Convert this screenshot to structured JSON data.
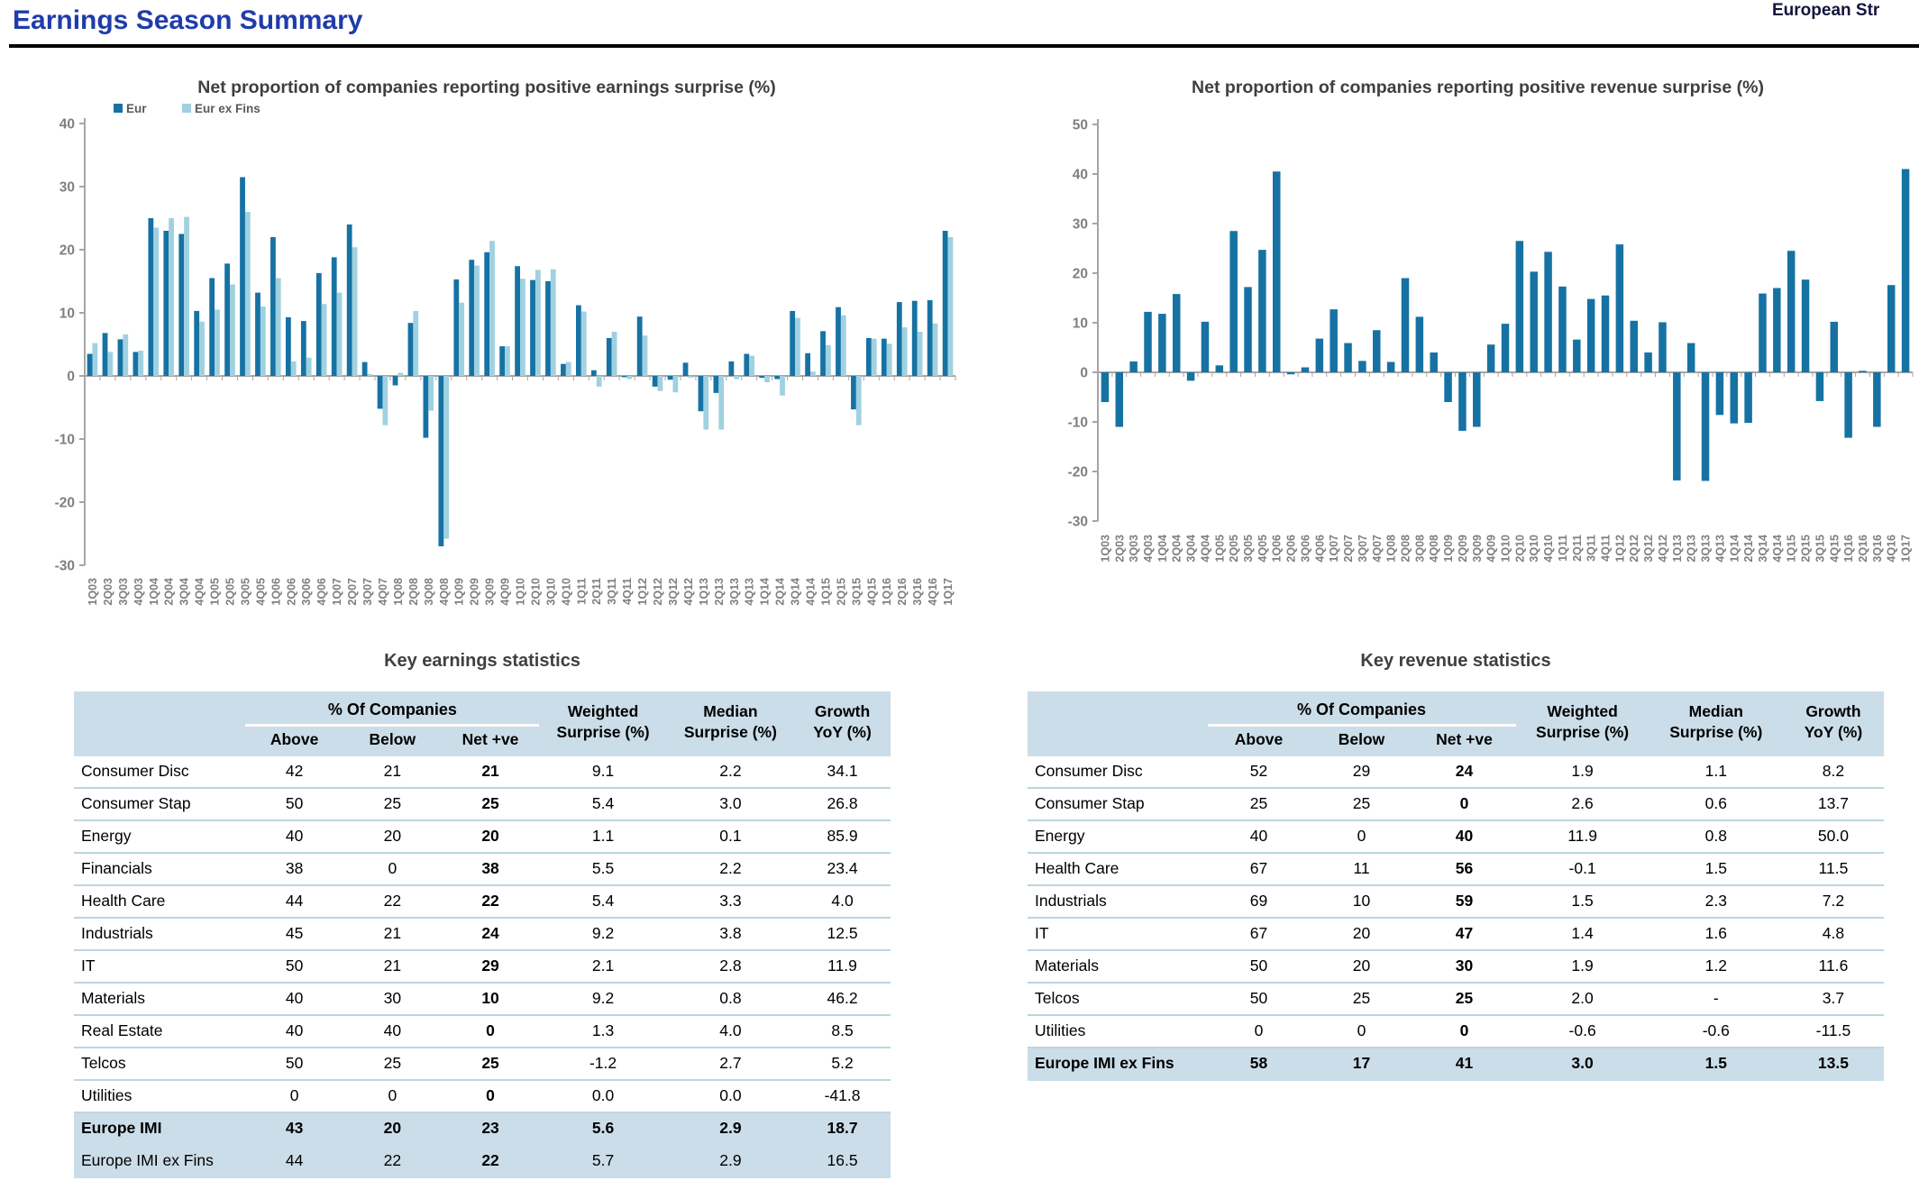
{
  "page": {
    "title": "Earnings Season Summary",
    "watermark_label": "European Str"
  },
  "colors": {
    "title_blue": "#1f3cab",
    "bar_dark": "#1672a3",
    "bar_light": "#a0d1e0",
    "axis_gray": "#a6a6a6",
    "tick_label_gray": "#7f7f7f",
    "chart_title_gray": "#3f3f3f",
    "table_header_bg": "#cbdde8",
    "row_divider": "#bed5e0"
  },
  "chart_data": [
    {
      "type": "bar",
      "title": "Net proportion of companies reporting positive earnings surprise (%)",
      "xlabel": "",
      "ylabel": "",
      "ylim": [
        -30,
        40
      ],
      "y_ticks": [
        40,
        30,
        20,
        10,
        0,
        -10,
        -20,
        -30
      ],
      "grid": false,
      "legend_position": "top-left",
      "categories": [
        "1Q03",
        "2Q03",
        "3Q03",
        "4Q03",
        "1Q04",
        "2Q04",
        "3Q04",
        "4Q04",
        "1Q05",
        "2Q05",
        "3Q05",
        "4Q05",
        "1Q06",
        "2Q06",
        "3Q06",
        "4Q06",
        "1Q07",
        "2Q07",
        "3Q07",
        "4Q07",
        "1Q08",
        "2Q08",
        "3Q08",
        "4Q08",
        "1Q09",
        "2Q09",
        "3Q09",
        "4Q09",
        "1Q10",
        "2Q10",
        "3Q10",
        "4Q10",
        "1Q11",
        "2Q11",
        "3Q11",
        "4Q11",
        "1Q12",
        "2Q12",
        "3Q12",
        "4Q12",
        "1Q13",
        "2Q13",
        "3Q13",
        "4Q13",
        "1Q14",
        "2Q14",
        "3Q14",
        "4Q14",
        "1Q15",
        "2Q15",
        "3Q15",
        "4Q15",
        "1Q16",
        "2Q16",
        "3Q16",
        "4Q16",
        "1Q17"
      ],
      "series": [
        {
          "name": "Eur",
          "color": "#1672a3",
          "values": [
            3.5,
            6.8,
            5.8,
            3.8,
            25,
            23,
            22.5,
            10.3,
            15.5,
            17.8,
            31.5,
            13.2,
            22,
            9.3,
            8.7,
            16.3,
            18.8,
            24,
            2.2,
            -5.2,
            -1.5,
            8.4,
            -9.8,
            -27,
            15.3,
            18.4,
            19.6,
            4.7,
            17.4,
            15.2,
            15,
            1.9,
            11.2,
            0.9,
            6,
            -0.2,
            9.4,
            -1.7,
            -0.6,
            2.1,
            -5.6,
            -2.7,
            2.3,
            3.5,
            -0.3,
            -0.5,
            10.3,
            3.6,
            7.1,
            10.9,
            -5.3,
            6,
            5.9,
            11.7,
            11.9,
            12,
            23
          ]
        },
        {
          "name": "Eur ex Fins",
          "color": "#a0d1e0",
          "values": [
            5.2,
            3.8,
            6.6,
            4,
            23.5,
            25,
            25.2,
            8.6,
            10.5,
            14.5,
            26,
            11,
            15.5,
            2.3,
            2.9,
            11.4,
            13.2,
            20.4,
            0.3,
            -7.8,
            0.5,
            10.3,
            -5.5,
            -25.8,
            11.6,
            17.5,
            21.4,
            4.7,
            15.4,
            16.8,
            16.9,
            2.2,
            10.2,
            -1.7,
            7,
            -0.5,
            6.4,
            -2.4,
            -2.6,
            -0.3,
            -8.5,
            -8.5,
            -0.5,
            3.2,
            -1,
            -3.1,
            9.2,
            0.7,
            4.9,
            9.6,
            -7.8,
            5.9,
            5.1,
            7.7,
            7,
            8.3,
            22
          ]
        }
      ]
    },
    {
      "type": "bar",
      "title": "Net proportion of companies reporting positive revenue surprise (%)",
      "xlabel": "",
      "ylabel": "",
      "ylim": [
        -30,
        50
      ],
      "y_ticks": [
        50,
        40,
        30,
        20,
        10,
        0,
        -10,
        -20,
        -30
      ],
      "grid": false,
      "legend_position": "none",
      "categories": [
        "1Q03",
        "2Q03",
        "3Q03",
        "4Q03",
        "1Q04",
        "2Q04",
        "3Q04",
        "4Q04",
        "1Q05",
        "2Q05",
        "3Q05",
        "4Q05",
        "1Q06",
        "2Q06",
        "3Q06",
        "4Q06",
        "1Q07",
        "2Q07",
        "3Q07",
        "4Q07",
        "1Q08",
        "2Q08",
        "3Q08",
        "4Q08",
        "1Q09",
        "2Q09",
        "3Q09",
        "4Q09",
        "1Q10",
        "2Q10",
        "3Q10",
        "4Q10",
        "1Q11",
        "2Q11",
        "3Q11",
        "4Q11",
        "1Q12",
        "2Q12",
        "3Q12",
        "4Q12",
        "1Q13",
        "2Q13",
        "3Q13",
        "4Q13",
        "1Q14",
        "2Q14",
        "3Q14",
        "4Q14",
        "1Q15",
        "2Q15",
        "3Q15",
        "4Q15",
        "1Q16",
        "2Q16",
        "3Q16",
        "4Q16",
        "1Q17"
      ],
      "series": [
        {
          "name": "Eur",
          "color": "#1672a3",
          "values": [
            -6,
            -11,
            2.2,
            12.2,
            11.8,
            15.8,
            -1.7,
            10.2,
            1.4,
            28.5,
            17.2,
            24.7,
            40.5,
            -0.4,
            1,
            6.8,
            12.7,
            5.9,
            2.3,
            8.5,
            2.1,
            19,
            11.2,
            4,
            -6,
            -11.8,
            -11,
            5.6,
            9.8,
            26.5,
            20.3,
            24.3,
            17.3,
            6.6,
            14.8,
            15.5,
            25.8,
            10.4,
            4,
            10.1,
            -21.8,
            5.9,
            -21.9,
            -8.6,
            -10.3,
            -10.2,
            15.9,
            17,
            24.5,
            18.7,
            -5.8,
            10.2,
            -13.2,
            0.3,
            -11,
            17.6,
            41
          ]
        }
      ]
    }
  ],
  "tables": {
    "earnings": {
      "title": "Key earnings statistics",
      "group_header": "% Of Companies",
      "columns": [
        "Above",
        "Below",
        "Net +ve",
        "Weighted\nSurprise (%)",
        "Median\nSurprise (%)",
        "Growth\nYoY (%)"
      ],
      "rows": [
        {
          "name": "Consumer Disc",
          "values": [
            "42",
            "21",
            "21",
            "9.1",
            "2.2",
            "34.1"
          ],
          "highlight": false,
          "bold": false
        },
        {
          "name": "Consumer Stap",
          "values": [
            "50",
            "25",
            "25",
            "5.4",
            "3.0",
            "26.8"
          ],
          "highlight": false,
          "bold": false
        },
        {
          "name": "Energy",
          "values": [
            "40",
            "20",
            "20",
            "1.1",
            "0.1",
            "85.9"
          ],
          "highlight": false,
          "bold": false
        },
        {
          "name": "Financials",
          "values": [
            "38",
            "0",
            "38",
            "5.5",
            "2.2",
            "23.4"
          ],
          "highlight": false,
          "bold": false
        },
        {
          "name": "Health Care",
          "values": [
            "44",
            "22",
            "22",
            "5.4",
            "3.3",
            "4.0"
          ],
          "highlight": false,
          "bold": false
        },
        {
          "name": "Industrials",
          "values": [
            "45",
            "21",
            "24",
            "9.2",
            "3.8",
            "12.5"
          ],
          "highlight": false,
          "bold": false
        },
        {
          "name": "IT",
          "values": [
            "50",
            "21",
            "29",
            "2.1",
            "2.8",
            "11.9"
          ],
          "highlight": false,
          "bold": false
        },
        {
          "name": "Materials",
          "values": [
            "40",
            "30",
            "10",
            "9.2",
            "0.8",
            "46.2"
          ],
          "highlight": false,
          "bold": false
        },
        {
          "name": "Real Estate",
          "values": [
            "40",
            "40",
            "0",
            "1.3",
            "4.0",
            "8.5"
          ],
          "highlight": false,
          "bold": false
        },
        {
          "name": "Telcos",
          "values": [
            "50",
            "25",
            "25",
            "-1.2",
            "2.7",
            "5.2"
          ],
          "highlight": false,
          "bold": false
        },
        {
          "name": "Utilities",
          "values": [
            "0",
            "0",
            "0",
            "0.0",
            "0.0",
            "-41.8"
          ],
          "highlight": false,
          "bold": false
        },
        {
          "name": "Europe IMI",
          "values": [
            "43",
            "20",
            "23",
            "5.6",
            "2.9",
            "18.7"
          ],
          "highlight": true,
          "bold": true
        },
        {
          "name": "Europe IMI ex Fins",
          "values": [
            "44",
            "22",
            "22",
            "5.7",
            "2.9",
            "16.5"
          ],
          "highlight": true,
          "bold": false
        }
      ]
    },
    "revenue": {
      "title": "Key revenue statistics",
      "group_header": "% Of Companies",
      "columns": [
        "Above",
        "Below",
        "Net +ve",
        "Weighted\nSurprise (%)",
        "Median\nSurprise (%)",
        "Growth\nYoY (%)"
      ],
      "rows": [
        {
          "name": "Consumer Disc",
          "values": [
            "52",
            "29",
            "24",
            "1.9",
            "1.1",
            "8.2"
          ],
          "highlight": false,
          "bold": false
        },
        {
          "name": "Consumer Stap",
          "values": [
            "25",
            "25",
            "0",
            "2.6",
            "0.6",
            "13.7"
          ],
          "highlight": false,
          "bold": false
        },
        {
          "name": "Energy",
          "values": [
            "40",
            "0",
            "40",
            "11.9",
            "0.8",
            "50.0"
          ],
          "highlight": false,
          "bold": false
        },
        {
          "name": "Health Care",
          "values": [
            "67",
            "11",
            "56",
            "-0.1",
            "1.5",
            "11.5"
          ],
          "highlight": false,
          "bold": false
        },
        {
          "name": "Industrials",
          "values": [
            "69",
            "10",
            "59",
            "1.5",
            "2.3",
            "7.2"
          ],
          "highlight": false,
          "bold": false
        },
        {
          "name": "IT",
          "values": [
            "67",
            "20",
            "47",
            "1.4",
            "1.6",
            "4.8"
          ],
          "highlight": false,
          "bold": false
        },
        {
          "name": "Materials",
          "values": [
            "50",
            "20",
            "30",
            "1.9",
            "1.2",
            "11.6"
          ],
          "highlight": false,
          "bold": false
        },
        {
          "name": "Telcos",
          "values": [
            "50",
            "25",
            "25",
            "2.0",
            "-",
            "3.7"
          ],
          "highlight": false,
          "bold": false
        },
        {
          "name": "Utilities",
          "values": [
            "0",
            "0",
            "0",
            "-0.6",
            "-0.6",
            "-11.5"
          ],
          "highlight": false,
          "bold": false
        },
        {
          "name": "Europe IMI ex Fins",
          "values": [
            "58",
            "17",
            "41",
            "3.0",
            "1.5",
            "13.5"
          ],
          "highlight": true,
          "bold": true
        }
      ]
    }
  }
}
